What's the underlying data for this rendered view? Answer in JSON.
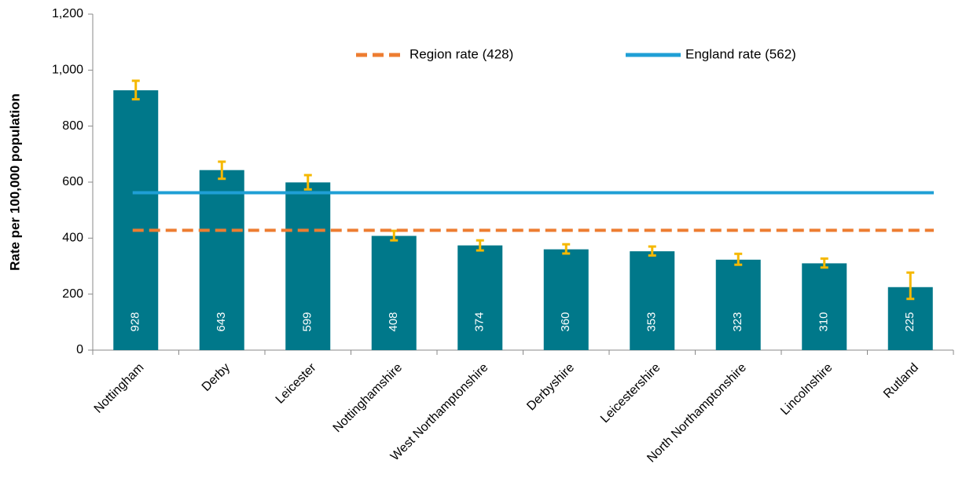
{
  "chart_data": {
    "type": "bar",
    "ylabel": "Rate per 100,000 population",
    "categories": [
      "Nottingham",
      "Derby",
      "Leicester",
      "Nottinghamshire",
      "West Northamptonshire",
      "Derbyshire",
      "Leicestershire",
      "North Northamptonshire",
      "Lincolnshire",
      "Rutland"
    ],
    "series": [
      {
        "color": "#00788a",
        "values": [
          928,
          643,
          599,
          408,
          374,
          360,
          353,
          323,
          310,
          225
        ],
        "ci_lower": [
          896,
          612,
          574,
          392,
          356,
          345,
          338,
          305,
          295,
          183
        ],
        "ci_upper": [
          962,
          673,
          625,
          426,
          392,
          378,
          370,
          344,
          327,
          277
        ],
        "error_color": "#f5b800"
      }
    ],
    "reference_lines": [
      {
        "name": "Region rate (428)",
        "value": 428,
        "color": "#ed7d31",
        "style": "dashed"
      },
      {
        "name": "England rate (562)",
        "value": 562,
        "color": "#1f9fd5",
        "style": "solid"
      }
    ],
    "ylim": [
      0,
      1200
    ],
    "yticks": [
      0,
      200,
      400,
      600,
      800,
      {
        "value": 1000,
        "label": "1,000"
      },
      {
        "value": 1200,
        "label": "1,200"
      }
    ]
  }
}
